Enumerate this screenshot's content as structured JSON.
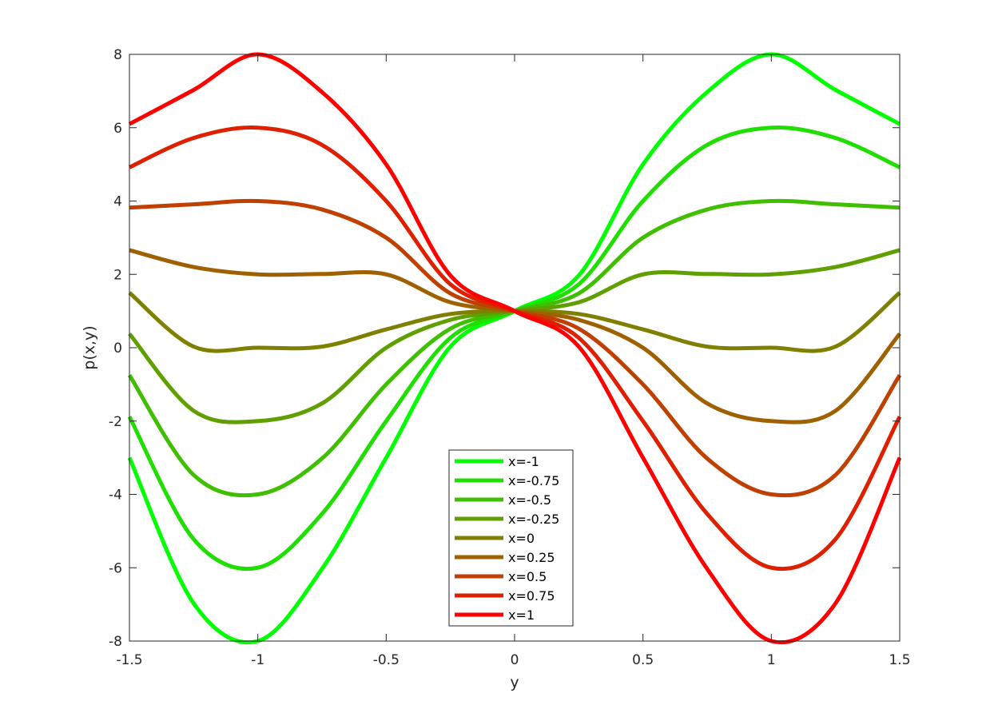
{
  "chart_data": {
    "type": "line",
    "title": "",
    "xlabel": "y",
    "ylabel": "p(x,y)",
    "xlim": [
      -1.5,
      1.5
    ],
    "ylim": [
      -8,
      8
    ],
    "grid": false,
    "legend_position": "bottom-center",
    "x_ticks": [
      -1.5,
      -1,
      -0.5,
      0,
      0.5,
      1,
      1.5
    ],
    "x_tick_labels": [
      "-1.5",
      "-1",
      "-0.5",
      "0",
      "0.5",
      "1",
      "1.5"
    ],
    "y_ticks": [
      -8,
      -6,
      -4,
      -2,
      0,
      2,
      4,
      6,
      8
    ],
    "y_tick_labels": [
      "-8",
      "-6",
      "-4",
      "-2",
      "0",
      "2",
      "4",
      "6",
      "8"
    ],
    "x": [
      -1.5,
      -1.25,
      -1,
      -0.75,
      -0.5,
      -0.25,
      0,
      0.25,
      0.5,
      0.75,
      1,
      1.25,
      1.5
    ],
    "series": [
      {
        "name": "x=-1",
        "color": "#00ff00",
        "values": [
          -3,
          -6.97,
          -8,
          -6.03,
          -3,
          0.03,
          1,
          1.97,
          5,
          6.97,
          8,
          7.03,
          6.1
        ]
      },
      {
        "name": "x=-0.75",
        "color": "#20df00",
        "values": [
          -1.88,
          -5.22,
          -6,
          -4.53,
          -2,
          0.27,
          1,
          1.73,
          4,
          5.53,
          6,
          5.72,
          4.92
        ]
      },
      {
        "name": "x=-0.5",
        "color": "#40bf00",
        "values": [
          -0.75,
          -3.47,
          -4,
          -3.02,
          -1,
          0.52,
          1,
          1.48,
          3,
          3.77,
          4,
          3.91,
          3.82
        ]
      },
      {
        "name": "x=-0.25",
        "color": "#609f00",
        "values": [
          0.38,
          -1.72,
          -2,
          -1.52,
          0,
          0.76,
          1,
          1.24,
          2,
          2.01,
          2,
          2.2,
          2.66
        ]
      },
      {
        "name": "x=0",
        "color": "#808000",
        "values": [
          1.5,
          0.03,
          0,
          0.03,
          0.5,
          0.92,
          1,
          0.92,
          0.5,
          0.03,
          0,
          0.03,
          1.5
        ]
      },
      {
        "name": "x=0.25",
        "color": "#9f6000",
        "values": [
          2.66,
          2.2,
          2,
          2.01,
          2,
          1.24,
          1,
          0.76,
          0,
          -1.52,
          -2,
          -1.72,
          0.38
        ]
      },
      {
        "name": "x=0.5",
        "color": "#bf4000",
        "values": [
          3.82,
          3.91,
          4,
          3.77,
          3,
          1.48,
          1,
          0.52,
          -1,
          -3.02,
          -4,
          -3.47,
          -0.75
        ]
      },
      {
        "name": "x=0.75",
        "color": "#df2000",
        "values": [
          4.92,
          5.72,
          6,
          5.53,
          4,
          1.73,
          1,
          0.27,
          -2,
          -4.53,
          -6,
          -5.22,
          -1.88
        ]
      },
      {
        "name": "x=1",
        "color": "#ff0000",
        "values": [
          6.1,
          7.03,
          8,
          6.97,
          5,
          1.97,
          1,
          0.03,
          -3,
          -6.03,
          -8,
          -6.97,
          -3
        ]
      }
    ]
  }
}
